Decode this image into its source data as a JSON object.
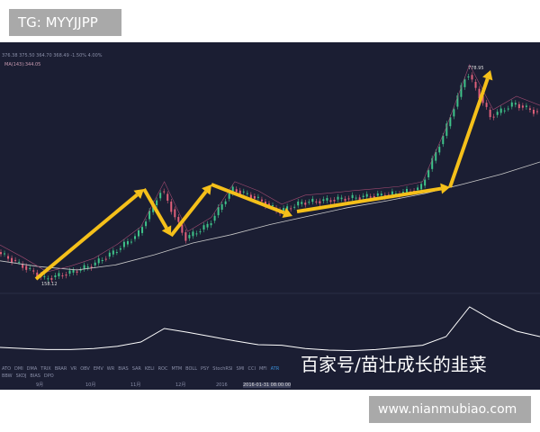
{
  "watermark_tag": "TG: MYYJJPP",
  "site_tag": "www.nianmubiao.com",
  "baijiahao_watermark": "百家号/苗壮成长的韭菜",
  "info_row": "376.38  375.50  364.70  368.49  -1.50%  4.00%",
  "ma_label": "MA(143):344.05",
  "indicator_tabs": [
    "ATO",
    "DMI",
    "DMA",
    "TRIX",
    "BRAR",
    "VR",
    "OBV",
    "EMV",
    "WR",
    "BIAS",
    "SAR",
    "KELI",
    "ROC",
    "MTM",
    "BOLL",
    "PSY",
    "StochRSI",
    "SMI",
    "CCI",
    "MFI",
    "ATR",
    "BBW",
    "SKDJ",
    "BIAS",
    "DPO"
  ],
  "time_labels": [
    "9月",
    "10月",
    "11月",
    "12月",
    "2016",
    "2016-01-31 08:00:00"
  ],
  "colors": {
    "background": "#1b1e33",
    "arrow": "#f5c01a",
    "up": "#3fc38a",
    "down": "#e0607a",
    "ma": "#c9c9c9",
    "ma2": "#a04a70"
  },
  "chart_data": {
    "type": "line",
    "annotations": {
      "low": "158.12",
      "high": "778.95"
    },
    "series": [
      {
        "name": "price",
        "values": [
          238,
          200,
          158,
          175,
          198,
          240,
          292,
          426,
          278,
          320,
          426,
          399,
          359,
          386,
          392,
          399,
          405,
          412,
          426,
          586,
          774,
          640,
          680,
          653
        ]
      },
      {
        "name": "MA(143)",
        "values": [
          212,
          195,
          185,
          200,
          230,
          265,
          290,
          320,
          345,
          370,
          390,
          412,
          440,
          470,
          506
        ]
      }
    ],
    "indicator": {
      "values": [
        10,
        8,
        6,
        6,
        8,
        12,
        20,
        45,
        38,
        30,
        22,
        15,
        14,
        8,
        5,
        4,
        6,
        10,
        14,
        30,
        85,
        60,
        40,
        30
      ]
    }
  }
}
